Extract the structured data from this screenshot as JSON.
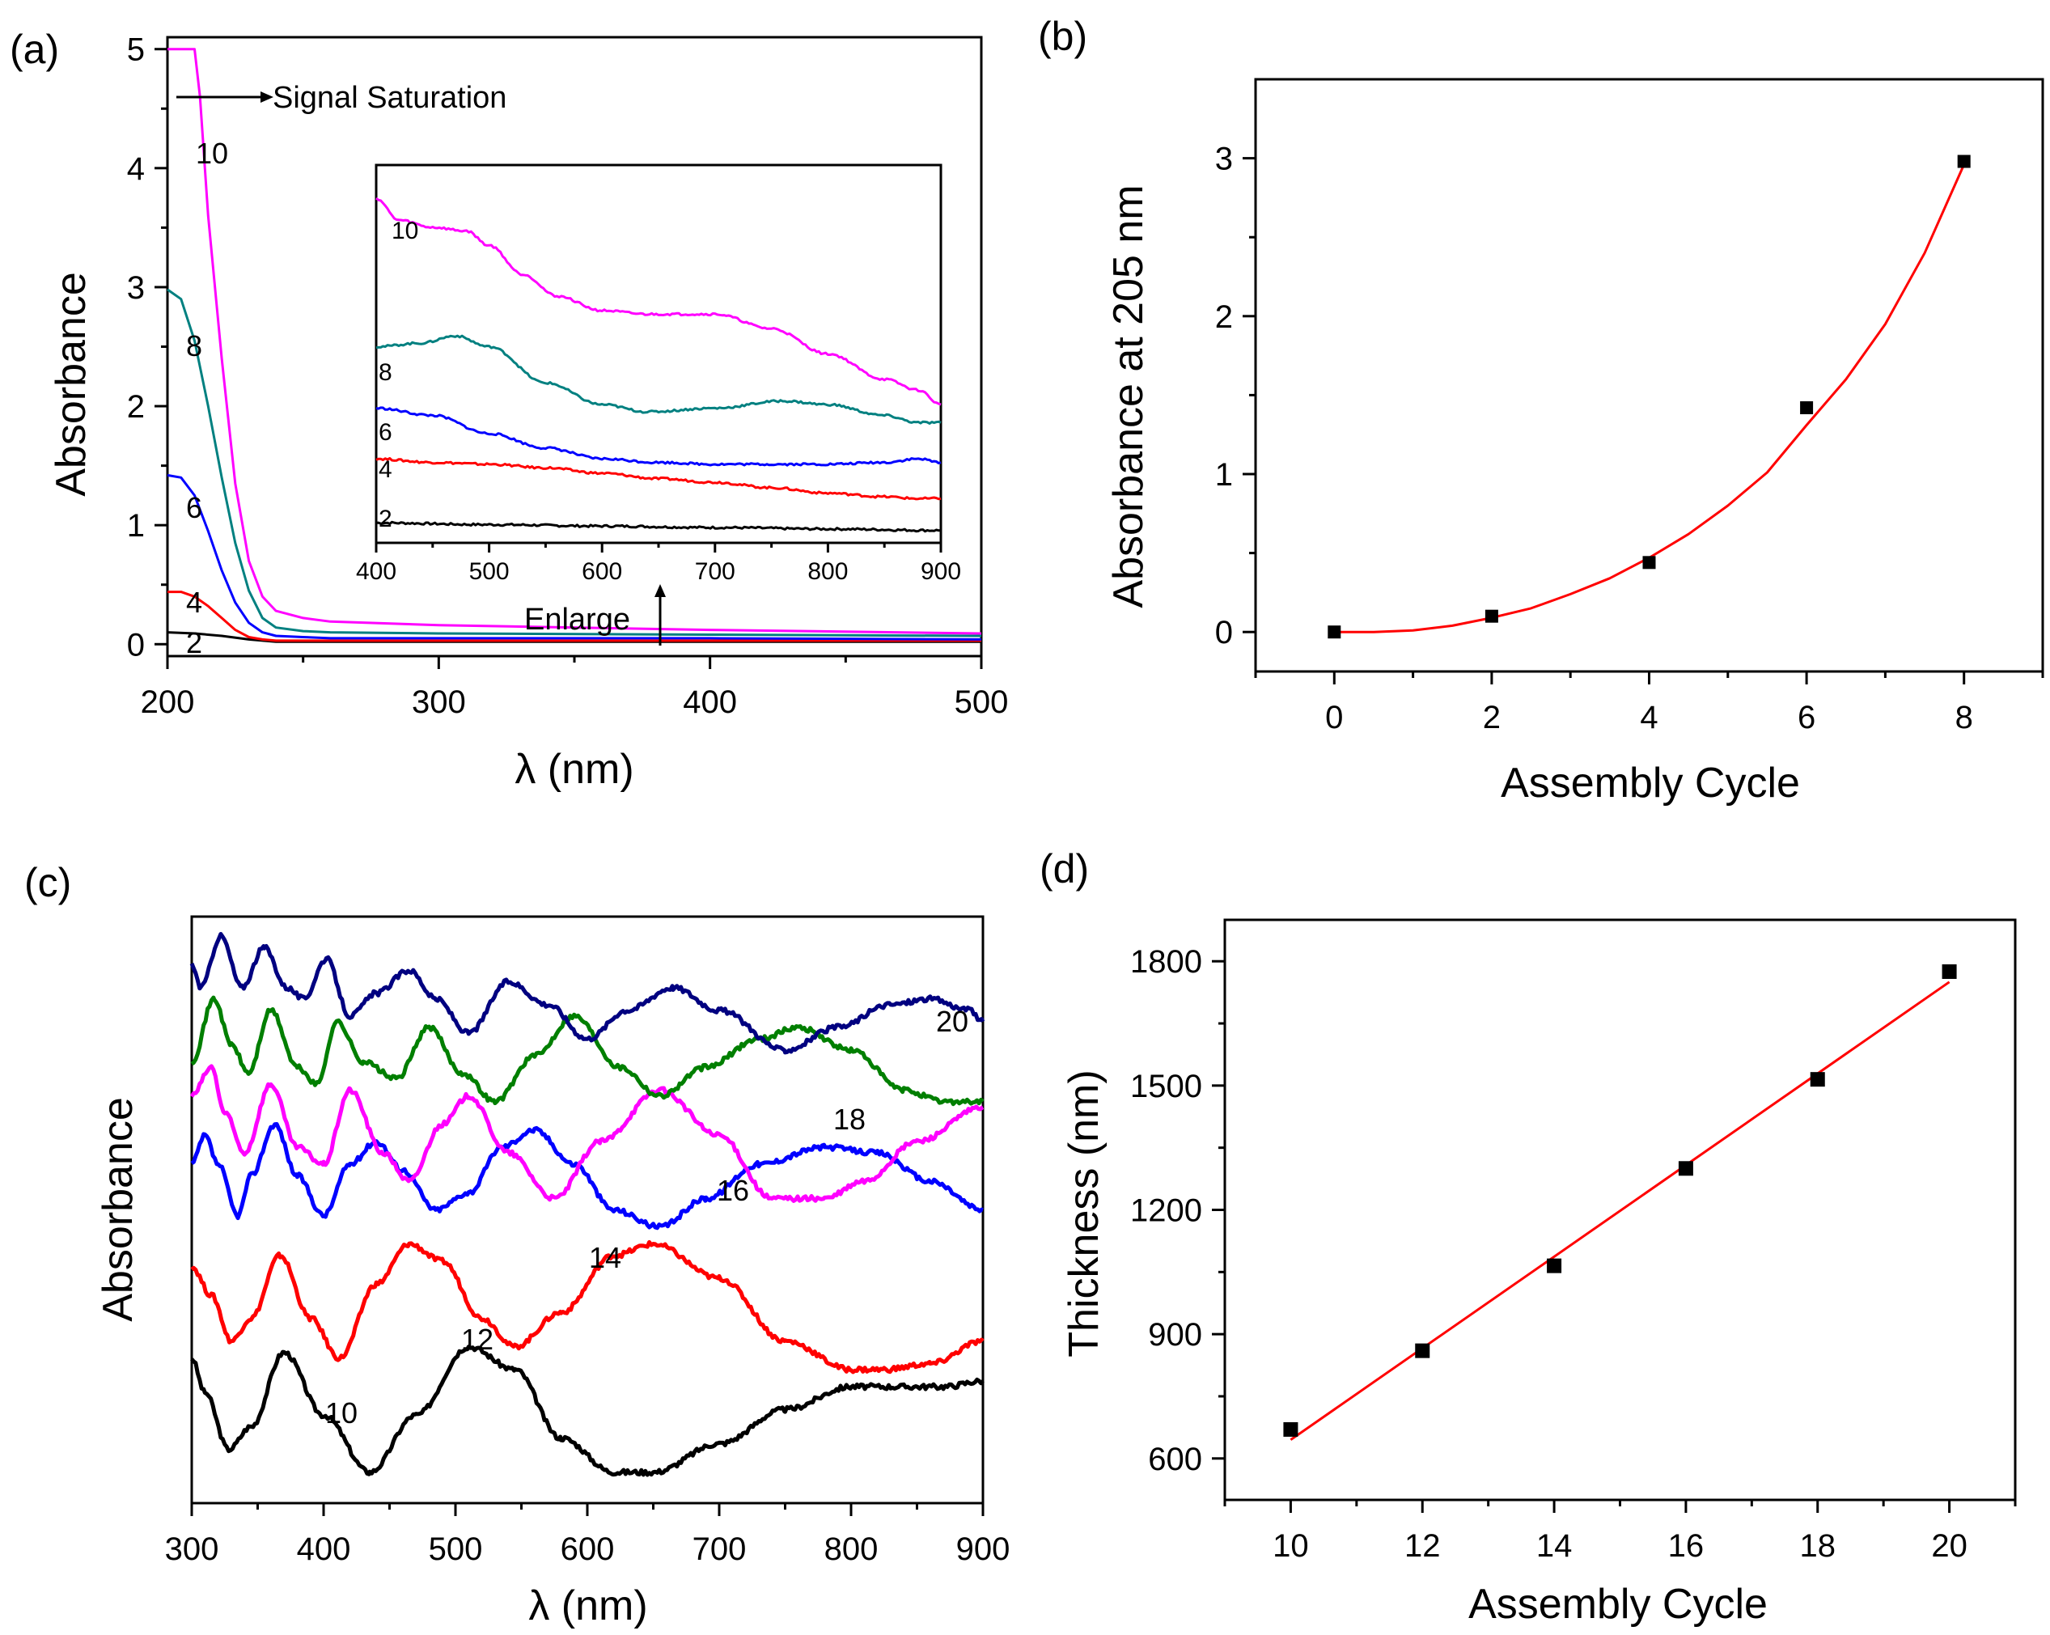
{
  "chart_data": [
    {
      "id": "a",
      "panel_label": "(a)",
      "type": "line",
      "xlabel": "λ (nm)",
      "ylabel": "Absorbance",
      "xlim": [
        200,
        500
      ],
      "ylim": [
        -0.1,
        5.1
      ],
      "xticks": [
        "200",
        "300",
        "400",
        "500"
      ],
      "yticks": [
        "0",
        "1",
        "2",
        "3",
        "4",
        "5"
      ],
      "series": [
        {
          "name": "2",
          "color": "#000000",
          "x": [
            200,
            210,
            220,
            230,
            240,
            260,
            300,
            400,
            500
          ],
          "values": [
            0.1,
            0.09,
            0.07,
            0.04,
            0.02,
            0.02,
            0.02,
            0.02,
            0.02
          ]
        },
        {
          "name": "4",
          "color": "#ff0000",
          "x": [
            200,
            205,
            210,
            215,
            220,
            225,
            230,
            235,
            240,
            260,
            300,
            400,
            500
          ],
          "values": [
            0.44,
            0.44,
            0.4,
            0.32,
            0.22,
            0.12,
            0.06,
            0.04,
            0.03,
            0.03,
            0.03,
            0.03,
            0.03
          ]
        },
        {
          "name": "6",
          "color": "#0000ff",
          "x": [
            200,
            205,
            210,
            215,
            220,
            225,
            230,
            235,
            240,
            250,
            260,
            300,
            400,
            500
          ],
          "values": [
            1.42,
            1.4,
            1.25,
            0.95,
            0.62,
            0.35,
            0.18,
            0.1,
            0.07,
            0.06,
            0.05,
            0.05,
            0.05,
            0.04
          ]
        },
        {
          "name": "8",
          "color": "#008080",
          "x": [
            200,
            205,
            210,
            215,
            220,
            225,
            230,
            235,
            240,
            250,
            260,
            300,
            400,
            500
          ],
          "values": [
            2.98,
            2.9,
            2.55,
            2.0,
            1.4,
            0.85,
            0.45,
            0.22,
            0.14,
            0.11,
            0.1,
            0.09,
            0.08,
            0.07
          ]
        },
        {
          "name": "10",
          "color": "#ff00ff",
          "x": [
            200,
            210,
            212,
            215,
            220,
            225,
            230,
            235,
            240,
            250,
            260,
            300,
            400,
            500
          ],
          "values": [
            5.0,
            5.0,
            4.6,
            3.6,
            2.4,
            1.35,
            0.7,
            0.4,
            0.28,
            0.22,
            0.19,
            0.16,
            0.12,
            0.09
          ]
        }
      ],
      "annotations": [
        {
          "text": "Signal Saturation"
        },
        {
          "text": "Enlarge"
        }
      ],
      "inset": {
        "xlim": [
          400,
          900
        ],
        "ylim": [
          0,
          1
        ],
        "xticks": [
          "400",
          "500",
          "600",
          "700",
          "800",
          "900"
        ],
        "series": [
          {
            "name": "2",
            "color": "#000000",
            "x": [
              400,
              500,
              600,
              700,
              800,
              900
            ],
            "values": [
              0.033,
              0.028,
              0.024,
              0.02,
              0.016,
              0.012
            ]
          },
          {
            "name": "4",
            "color": "#ff0000",
            "x": [
              400,
              450,
              500,
              550,
              600,
              650,
              700,
              750,
              800,
              850,
              880,
              900
            ],
            "values": [
              0.21,
              0.2,
              0.195,
              0.185,
              0.17,
              0.155,
              0.145,
              0.13,
              0.115,
              0.105,
              0.1,
              0.1
            ]
          },
          {
            "name": "6",
            "color": "#0000ff",
            "x": [
              400,
              450,
              500,
              550,
              600,
              650,
              700,
              750,
              800,
              850,
              880,
              900
            ],
            "values": [
              0.35,
              0.33,
              0.28,
              0.24,
              0.21,
              0.2,
              0.195,
              0.195,
              0.195,
              0.2,
              0.21,
              0.2
            ]
          },
          {
            "name": "8",
            "color": "#008080",
            "x": [
              400,
              440,
              470,
              500,
              550,
              600,
              640,
              700,
              760,
              800,
              850,
              880,
              900
            ],
            "values": [
              0.52,
              0.53,
              0.55,
              0.52,
              0.42,
              0.36,
              0.34,
              0.35,
              0.37,
              0.36,
              0.33,
              0.31,
              0.31
            ]
          },
          {
            "name": "10",
            "color": "#ff00ff",
            "x": [
              400,
              420,
              450,
              480,
              500,
              530,
              560,
              600,
              640,
              700,
              750,
              800,
              850,
              880,
              900
            ],
            "values": [
              0.93,
              0.87,
              0.85,
              0.84,
              0.8,
              0.72,
              0.66,
              0.62,
              0.61,
              0.61,
              0.57,
              0.5,
              0.43,
              0.4,
              0.36
            ]
          }
        ]
      }
    },
    {
      "id": "b",
      "panel_label": "(b)",
      "type": "scatter",
      "xlabel": "Assembly Cycle",
      "ylabel": "Absorbance at 205 nm",
      "xlim": [
        -1,
        9
      ],
      "ylim": [
        -0.25,
        3.5
      ],
      "xticks": [
        "0",
        "2",
        "4",
        "6",
        "8"
      ],
      "yticks": [
        "0",
        "1",
        "2",
        "3"
      ],
      "points": {
        "x": [
          0,
          2,
          4,
          6,
          8
        ],
        "values": [
          0.0,
          0.1,
          0.44,
          1.42,
          2.98
        ]
      },
      "fit": {
        "type": "polynomial",
        "color": "#ff0000",
        "x": [
          0,
          0.5,
          1,
          1.5,
          2,
          2.5,
          3,
          3.5,
          4,
          4.5,
          5,
          5.5,
          6,
          6.5,
          7,
          7.5,
          8
        ],
        "values": [
          0,
          0.0,
          0.01,
          0.04,
          0.09,
          0.15,
          0.24,
          0.34,
          0.47,
          0.62,
          0.8,
          1.01,
          1.31,
          1.6,
          1.95,
          2.4,
          2.96
        ]
      }
    },
    {
      "id": "c",
      "panel_label": "(c)",
      "type": "line",
      "xlabel": "λ (nm)",
      "ylabel": "Absorbance",
      "xlim": [
        300,
        900
      ],
      "ylim": [
        0,
        1
      ],
      "xticks": [
        "300",
        "400",
        "500",
        "600",
        "700",
        "800",
        "900"
      ],
      "yticks": [],
      "series": [
        {
          "name": "10",
          "color": "#000000",
          "x": [
            300,
            310,
            328,
            345,
            370,
            400,
            435,
            470,
            510,
            545,
            580,
            620,
            650,
            700,
            750,
            800,
            840,
            870,
            900
          ],
          "values": [
            0.24,
            0.18,
            0.08,
            0.12,
            0.25,
            0.14,
            0.04,
            0.14,
            0.26,
            0.22,
            0.1,
            0.04,
            0.04,
            0.09,
            0.15,
            0.19,
            0.19,
            0.19,
            0.2
          ]
        },
        {
          "name": "12",
          "color": "#ff0000",
          "x": [
            300,
            315,
            330,
            345,
            367,
            390,
            412,
            440,
            465,
            490,
            520,
            545,
            580,
            620,
            650,
            700,
            750,
            800,
            825,
            860,
            900
          ],
          "values": [
            0.4,
            0.35,
            0.27,
            0.31,
            0.42,
            0.31,
            0.24,
            0.37,
            0.44,
            0.41,
            0.31,
            0.26,
            0.32,
            0.42,
            0.44,
            0.38,
            0.27,
            0.22,
            0.22,
            0.23,
            0.27
          ]
        },
        {
          "name": "14",
          "color": "#0000ff",
          "x": [
            300,
            310,
            320,
            335,
            345,
            363,
            380,
            400,
            420,
            440,
            460,
            485,
            510,
            535,
            560,
            590,
            620,
            655,
            690,
            730,
            780,
            820,
            860,
            900
          ],
          "values": [
            0.58,
            0.63,
            0.58,
            0.49,
            0.56,
            0.65,
            0.56,
            0.49,
            0.58,
            0.62,
            0.57,
            0.5,
            0.53,
            0.61,
            0.64,
            0.58,
            0.5,
            0.47,
            0.52,
            0.58,
            0.61,
            0.6,
            0.55,
            0.5
          ]
        },
        {
          "name": "16",
          "color": "#ff00ff",
          "x": [
            300,
            315,
            325,
            340,
            360,
            380,
            400,
            420,
            445,
            465,
            490,
            510,
            540,
            575,
            610,
            655,
            700,
            740,
            780,
            810,
            850,
            900
          ],
          "values": [
            0.7,
            0.75,
            0.67,
            0.6,
            0.72,
            0.61,
            0.58,
            0.71,
            0.6,
            0.55,
            0.65,
            0.7,
            0.6,
            0.52,
            0.62,
            0.71,
            0.63,
            0.52,
            0.52,
            0.55,
            0.62,
            0.68
          ]
        },
        {
          "name": "18",
          "color": "#007f00",
          "x": [
            300,
            317,
            330,
            343,
            360,
            380,
            395,
            410,
            430,
            455,
            480,
            505,
            530,
            560,
            590,
            625,
            655,
            690,
            730,
            760,
            800,
            840,
            870,
            900
          ],
          "values": [
            0.76,
            0.87,
            0.79,
            0.74,
            0.85,
            0.75,
            0.72,
            0.83,
            0.76,
            0.73,
            0.82,
            0.74,
            0.69,
            0.77,
            0.84,
            0.75,
            0.7,
            0.75,
            0.8,
            0.82,
            0.78,
            0.71,
            0.69,
            0.69
          ]
        },
        {
          "name": "20",
          "color": "#000080",
          "x": [
            300,
            307,
            322,
            338,
            355,
            372,
            385,
            402,
            420,
            440,
            465,
            485,
            510,
            540,
            570,
            600,
            630,
            665,
            700,
            750,
            790,
            830,
            860,
            890,
            900
          ],
          "values": [
            0.93,
            0.89,
            0.98,
            0.89,
            0.96,
            0.89,
            0.87,
            0.94,
            0.84,
            0.88,
            0.92,
            0.87,
            0.81,
            0.9,
            0.86,
            0.8,
            0.85,
            0.89,
            0.85,
            0.78,
            0.82,
            0.86,
            0.87,
            0.85,
            0.83
          ]
        }
      ]
    },
    {
      "id": "d",
      "panel_label": "(d)",
      "type": "scatter",
      "xlabel": "Assembly  Cycle",
      "ylabel": "Thickness (nm)",
      "xlim": [
        9,
        21
      ],
      "ylim": [
        500,
        1900
      ],
      "xticks": [
        "10",
        "12",
        "14",
        "16",
        "18",
        "20"
      ],
      "yticks": [
        "600",
        "900",
        "1200",
        "1500",
        "1800"
      ],
      "points": {
        "x": [
          10,
          12,
          14,
          16,
          18,
          20
        ],
        "values": [
          670,
          860,
          1065,
          1300,
          1515,
          1775
        ]
      },
      "fit": {
        "type": "linear",
        "color": "#ff0000",
        "x": [
          10,
          20
        ],
        "values": [
          645,
          1750
        ]
      }
    }
  ]
}
